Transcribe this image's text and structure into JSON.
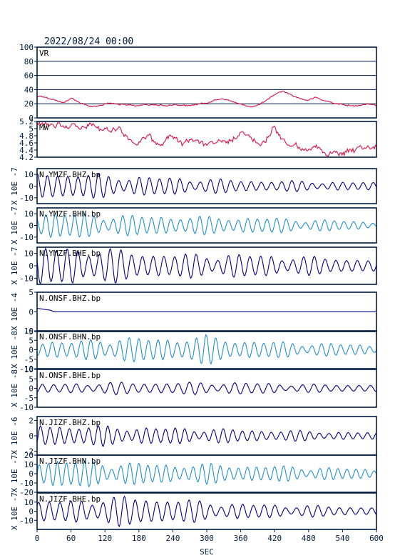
{
  "header": {
    "timestamp": "2022/08/24 00:00"
  },
  "chart_data": {
    "type": "line",
    "xlabel": "SEC",
    "xlim": [
      0,
      600
    ],
    "xticks": [
      0,
      60,
      120,
      180,
      240,
      300,
      360,
      420,
      480,
      540,
      600
    ],
    "colors": {
      "red": "#dd1144",
      "dark_blue": "#000088",
      "light_blue": "#2090d0",
      "frame": "#001a3d"
    },
    "panels": [
      {
        "id": "vr",
        "label": "VR",
        "unit": "",
        "color": "red",
        "ylim": [
          0,
          100
        ],
        "yticks": [
          0,
          20,
          40,
          60,
          80,
          100
        ],
        "gridlines": [
          20,
          40,
          60,
          80
        ],
        "values": [
          30,
          31,
          29,
          27,
          26,
          23,
          22,
          24,
          28,
          25,
          21,
          19,
          17,
          16,
          17,
          18,
          20,
          21,
          20,
          19,
          19,
          18,
          18,
          17,
          18,
          19,
          18,
          19,
          18,
          18,
          17,
          18,
          19,
          18,
          18,
          17,
          18,
          19,
          20,
          21,
          22,
          24,
          26,
          27,
          26,
          24,
          22,
          20,
          18,
          17,
          16,
          17,
          20,
          23,
          27,
          32,
          35,
          38,
          36,
          33,
          30,
          28,
          26,
          25,
          27,
          29,
          26,
          24,
          23,
          21,
          20,
          19,
          18,
          17,
          17,
          18,
          19,
          20,
          19,
          18
        ]
      },
      {
        "id": "mw",
        "label": "MW",
        "unit": "",
        "color": "red",
        "ylim": [
          4.2,
          5.2
        ],
        "yticks": [
          4.2,
          4.4,
          4.6,
          4.8,
          5.0,
          5.2
        ],
        "gridlines": [],
        "values": [
          5.15,
          5.12,
          5.18,
          5.1,
          5.05,
          5.16,
          5.08,
          5.02,
          5.12,
          5.06,
          4.98,
          5.04,
          5.08,
          5.14,
          5.02,
          4.96,
          5.0,
          4.92,
          4.98,
          5.05,
          4.86,
          4.78,
          4.66,
          4.55,
          4.62,
          4.74,
          4.82,
          4.68,
          4.6,
          4.56,
          4.7,
          4.82,
          4.76,
          4.62,
          4.58,
          4.66,
          4.72,
          4.68,
          4.6,
          4.56,
          4.6,
          4.58,
          4.64,
          4.62,
          4.6,
          4.66,
          4.72,
          4.8,
          4.9,
          4.82,
          4.7,
          4.6,
          4.52,
          4.62,
          4.8,
          5.05,
          4.9,
          4.72,
          4.58,
          4.5,
          4.56,
          4.48,
          4.4,
          4.38,
          4.46,
          4.54,
          4.42,
          4.32,
          4.28,
          4.36,
          4.3,
          4.26,
          4.34,
          4.42,
          4.38,
          4.5,
          4.44,
          4.52,
          4.46,
          4.48
        ]
      },
      {
        "id": "ymzf-bhz",
        "label": "N.YMZF.BHZ.bp",
        "unit": "X 10E -7",
        "color": "dark_blue",
        "ylim": [
          -15,
          15
        ],
        "yticks": [
          -10,
          0,
          10
        ],
        "period": 18,
        "env": [
          13,
          11,
          9,
          8,
          7,
          6,
          5,
          4.5,
          4,
          3.5,
          3
        ]
      },
      {
        "id": "ymzf-bhn",
        "label": "N.YMZF.BHN.bp",
        "unit": "X 10E -7",
        "color": "light_blue",
        "ylim": [
          -15,
          15
        ],
        "yticks": [
          -10,
          0,
          10
        ],
        "period": 17,
        "env": [
          12,
          10,
          9,
          8,
          8,
          7,
          7,
          6,
          5,
          4,
          3
        ]
      },
      {
        "id": "ymzf-bhe",
        "label": "N.YMZF.BHE.bp",
        "unit": "X 10E -7",
        "color": "dark_blue",
        "ylim": [
          -15,
          15
        ],
        "yticks": [
          -10,
          0,
          10
        ],
        "period": 19,
        "env": [
          14,
          15,
          13,
          11,
          9,
          9,
          9,
          8,
          7,
          6,
          5
        ]
      },
      {
        "id": "onsf-bhz",
        "label": "N.ONSF.BHZ.bp",
        "unit": "X 10E -4",
        "color": "dark_blue",
        "ylim": [
          -5,
          5
        ],
        "yticks": [
          -5,
          0,
          5
        ],
        "flat": true
      },
      {
        "id": "onsf-bhn",
        "label": "N.ONSF.BHN.bp",
        "unit": "X 10E -8",
        "color": "light_blue",
        "ylim": [
          -10,
          10
        ],
        "yticks": [
          -10,
          -5,
          0,
          5,
          10
        ],
        "period": 17,
        "env": [
          5,
          4,
          6,
          6,
          6,
          7,
          5,
          4,
          3.5,
          3,
          2.5
        ]
      },
      {
        "id": "onsf-bhe",
        "label": "N.ONSF.BHE.bp",
        "unit": "X 10E -8",
        "color": "dark_blue",
        "ylim": [
          -10,
          10
        ],
        "yticks": [
          -10,
          -5,
          0,
          5,
          10
        ],
        "period": 20,
        "env": [
          2,
          2.5,
          3,
          3,
          3,
          3,
          3,
          2.5,
          2,
          2,
          2
        ]
      },
      {
        "id": "jizf-bhz",
        "label": "N.JIZF.BHZ.bp",
        "unit": "X 10E -6",
        "color": "dark_blue",
        "ylim": [
          -2.5,
          2.5
        ],
        "yticks": [
          -2,
          0,
          2
        ],
        "period": 17,
        "env": [
          1.5,
          1.3,
          1.2,
          1.1,
          1.0,
          0.9,
          0.8,
          0.7,
          0.6,
          0.5,
          0.4
        ]
      },
      {
        "id": "jizf-bhn",
        "label": "N.JIZF.BHN.bp",
        "unit": "X 10E -7",
        "color": "light_blue",
        "ylim": [
          -20,
          20
        ],
        "yticks": [
          -20,
          -10,
          0,
          10,
          20
        ],
        "period": 16,
        "env": [
          16,
          14,
          12,
          11,
          10,
          10,
          9,
          8,
          7,
          6,
          5
        ]
      },
      {
        "id": "jizf-bhe",
        "label": "N.JIZF.BHE.bp",
        "unit": "X 10E -7",
        "color": "dark_blue",
        "ylim": [
          -20,
          20
        ],
        "yticks": [
          -10,
          0,
          10
        ],
        "period": 19,
        "env": [
          10,
          12,
          14,
          16,
          13,
          10,
          8,
          7,
          6,
          5,
          5
        ]
      }
    ]
  }
}
